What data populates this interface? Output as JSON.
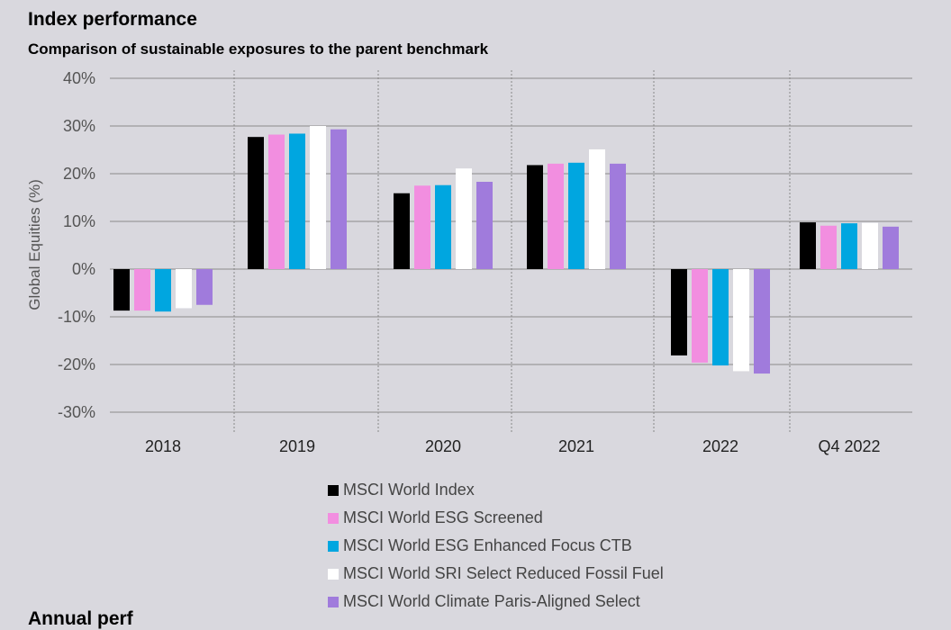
{
  "header": {
    "title": "Index performance",
    "subtitle": "Comparison of sustainable exposures to the parent benchmark",
    "next_section_partial": "Annual perf"
  },
  "chart_data": {
    "type": "bar",
    "title": "Index performance",
    "subtitle": "Comparison of sustainable exposures to the parent benchmark",
    "xlabel": "",
    "ylabel": "Global Equities (%)",
    "ylim": [
      -30,
      40
    ],
    "yticks": [
      40,
      30,
      20,
      10,
      0,
      -10,
      -20,
      -30
    ],
    "ytick_labels": [
      "40%",
      "30%",
      "20%",
      "10%",
      "0%",
      "-10%",
      "-20%",
      "-30%"
    ],
    "grid": true,
    "legend_position": "bottom",
    "categories": [
      "2018",
      "2019",
      "2020",
      "2021",
      "2022",
      "Q4 2022"
    ],
    "series": [
      {
        "name": "MSCI World Index",
        "color": "#000000",
        "values": [
          -8.7,
          27.7,
          15.9,
          21.8,
          -18.1,
          9.8
        ]
      },
      {
        "name": "MSCI World ESG Screened",
        "color": "#f28ee0",
        "values": [
          -8.7,
          28.2,
          17.5,
          22.1,
          -19.6,
          9.1
        ]
      },
      {
        "name": "MSCI World ESG Enhanced Focus CTB",
        "color": "#00a6e0",
        "values": [
          -8.9,
          28.4,
          17.6,
          22.3,
          -20.2,
          9.6
        ]
      },
      {
        "name": "MSCI World SRI Select Reduced Fossil Fuel",
        "color": "#ffffff",
        "values": [
          -8.2,
          30.0,
          21.1,
          25.1,
          -21.4,
          9.7
        ]
      },
      {
        "name": "MSCI World Climate Paris-Aligned Select",
        "color": "#a07bdc",
        "values": [
          -7.5,
          29.3,
          18.3,
          22.1,
          -21.9,
          8.9
        ]
      }
    ]
  }
}
